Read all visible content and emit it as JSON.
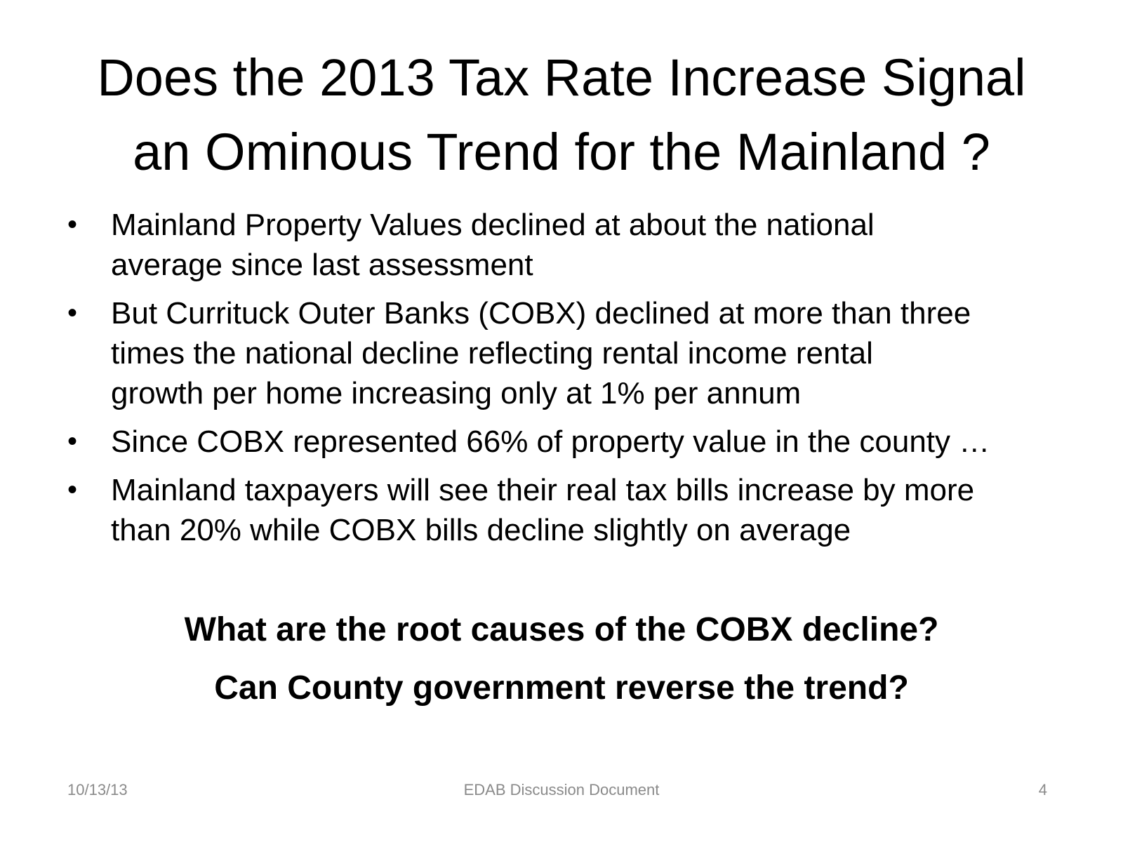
{
  "slide": {
    "title_lines": [
      "Does the 2013 Tax Rate Increase Signal",
      "an Ominous Trend for the Mainland ?"
    ],
    "bullet_symbol": "•",
    "bullets": [
      {
        "lines": [
          "Mainland Property Values declined at about the national",
          "average since last assessment"
        ]
      },
      {
        "lines": [
          "But Currituck Outer Banks (COBX) declined at more than three",
          "times the national decline reflecting rental income rental",
          "growth per home increasing only at 1% per annum"
        ]
      },
      {
        "lines": [
          "Since COBX represented 66% of property value in the county …"
        ]
      },
      {
        "lines": [
          "Mainland taxpayers will see their real tax bills increase by more",
          "than 20% while COBX bills decline slightly on average"
        ]
      }
    ],
    "questions": [
      "What are the root causes of the COBX decline?",
      "Can County government reverse the trend?"
    ],
    "footer": {
      "date": "10/13/13",
      "center": "EDAB Discussion Document",
      "page_number": "4"
    }
  }
}
